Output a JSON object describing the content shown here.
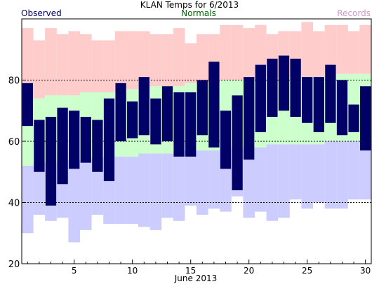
{
  "chart_data": {
    "type": "bar",
    "title": "KLAN Temps for 6/2013",
    "legend": {
      "observed": "Observed",
      "normals": "Normals",
      "records": "Records",
      "placement": "top"
    },
    "xlabel": "June 2013",
    "x_ticks": [
      5,
      10,
      15,
      20,
      25,
      30
    ],
    "y_ticks": [
      20,
      40,
      60,
      80
    ],
    "ylim": [
      20,
      100
    ],
    "xlim": [
      0.5,
      30.5
    ],
    "reference_lines": [
      40,
      60,
      80
    ],
    "days": [
      1,
      2,
      3,
      4,
      5,
      6,
      7,
      8,
      9,
      10,
      11,
      12,
      13,
      14,
      15,
      16,
      17,
      18,
      19,
      20,
      21,
      22,
      23,
      24,
      25,
      26,
      27,
      28,
      29,
      30
    ],
    "series": [
      {
        "name": "Records",
        "high": [
          97,
          93,
          97,
          95,
          96,
          95,
          93,
          93,
          96,
          96,
          96,
          95,
          95,
          97,
          92,
          95,
          95,
          98,
          98,
          97,
          98,
          95,
          96,
          96,
          99,
          96,
          98,
          98,
          96,
          98
        ],
        "low": [
          30,
          36,
          34,
          35,
          27,
          31,
          36,
          33,
          33,
          33,
          32,
          31,
          35,
          34,
          39,
          36,
          38,
          37,
          42,
          35,
          37,
          34,
          35,
          41,
          38,
          40,
          38,
          38,
          41,
          41
        ]
      },
      {
        "name": "Normals",
        "high": [
          74,
          74,
          75,
          75,
          75,
          76,
          76,
          76,
          77,
          77,
          77,
          78,
          78,
          78,
          79,
          79,
          79,
          80,
          80,
          80,
          80,
          81,
          81,
          81,
          81,
          81,
          81,
          82,
          82,
          82
        ],
        "low": [
          52,
          53,
          53,
          54,
          54,
          54,
          55,
          55,
          55,
          55,
          56,
          56,
          56,
          57,
          57,
          57,
          57,
          58,
          58,
          58,
          58,
          59,
          59,
          59,
          59,
          59,
          60,
          60,
          60,
          60
        ]
      },
      {
        "name": "Observed",
        "high": [
          79,
          67,
          68,
          71,
          70,
          68,
          67,
          74,
          79,
          73,
          81,
          74,
          78,
          76,
          76,
          80,
          86,
          70,
          75,
          81,
          85,
          87,
          88,
          87,
          81,
          81,
          85,
          80,
          72,
          78
        ],
        "low": [
          65,
          50,
          39,
          46,
          51,
          53,
          50,
          47,
          60,
          61,
          62,
          59,
          60,
          55,
          55,
          62,
          58,
          51,
          44,
          54,
          63,
          68,
          70,
          68,
          66,
          63,
          66,
          62,
          63,
          57
        ]
      }
    ],
    "colors": {
      "records": "#ffcccc",
      "normals": "#ccffcc",
      "low_band": "#ccccff",
      "observed": "#000066",
      "observed_label": "#000066",
      "normals_label": "#006600",
      "records_label": "#cc99cc",
      "gridline": "#000000",
      "axis": "#000000"
    }
  }
}
